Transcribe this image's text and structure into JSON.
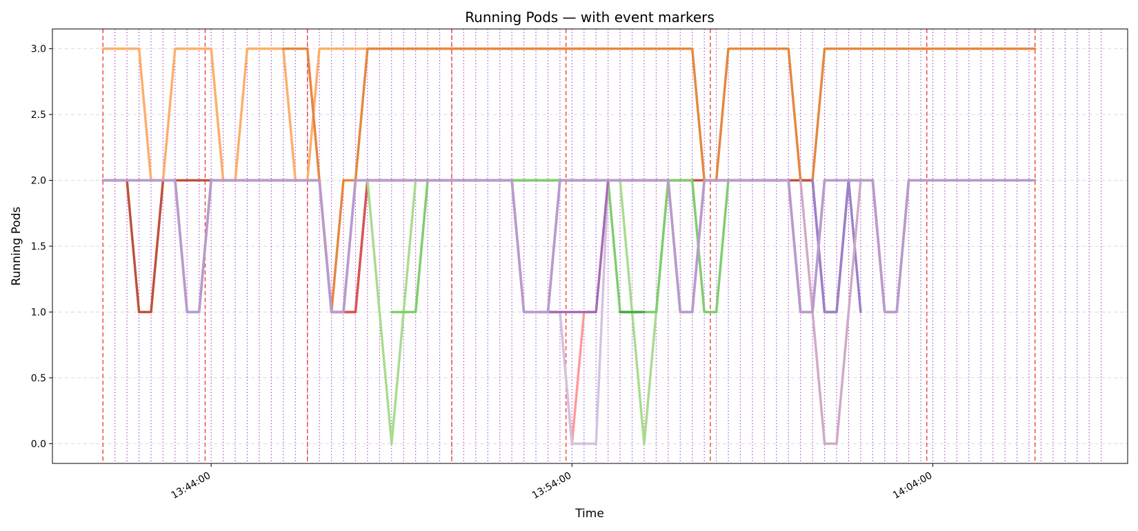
{
  "chart_data": {
    "type": "line",
    "title": "Running Pods —  with event markers",
    "xlabel": "Time",
    "ylabel": "Running Pods",
    "ylim": [
      -0.15,
      3.15
    ],
    "xlim": [
      "13:39:36",
      "14:09:24"
    ],
    "yticks": [
      0.0,
      0.5,
      1.0,
      1.5,
      2.0,
      2.5,
      3.0
    ],
    "ytick_labels": [
      "0.0",
      "0.5",
      "1.0",
      "1.5",
      "2.0",
      "2.5",
      "3.0"
    ],
    "xticks": [
      "13:44:00",
      "13:54:00",
      "14:04:00"
    ],
    "xtick_labels": [
      "13:44:00",
      "13:54:00",
      "14:04:00"
    ],
    "grid": "horizontal, dashed",
    "legend": "none",
    "event_markers": {
      "major": [
        "13:41:00",
        "13:43:50",
        "13:46:40",
        "13:50:40",
        "13:53:50",
        "13:57:50",
        "14:03:50",
        "14:06:50"
      ],
      "minor": [
        "13:41:20",
        "13:41:40",
        "13:42:00",
        "13:42:20",
        "13:42:40",
        "13:43:00",
        "13:43:20",
        "13:43:40",
        "13:44:00",
        "13:44:20",
        "13:44:40",
        "13:45:00",
        "13:45:20",
        "13:45:40",
        "13:46:00",
        "13:46:20",
        "13:46:40",
        "13:47:00",
        "13:47:20",
        "13:47:40",
        "13:48:00",
        "13:48:20",
        "13:48:40",
        "13:49:00",
        "13:49:20",
        "13:49:40",
        "13:50:00",
        "13:50:20",
        "13:50:40",
        "13:51:00",
        "13:51:20",
        "13:51:40",
        "13:52:00",
        "13:52:20",
        "13:52:40",
        "13:53:00",
        "13:53:20",
        "13:53:40",
        "13:54:00",
        "13:54:20",
        "13:54:40",
        "13:55:00",
        "13:55:20",
        "13:55:40",
        "13:56:00",
        "13:56:20",
        "13:56:40",
        "13:57:00",
        "13:57:20",
        "13:57:40",
        "13:58:00",
        "13:58:20",
        "13:58:40",
        "13:59:00",
        "13:59:20",
        "13:59:40",
        "14:00:00",
        "14:00:20",
        "14:00:40",
        "14:01:00",
        "14:01:20",
        "14:01:40",
        "14:02:00",
        "14:02:20",
        "14:02:40",
        "14:03:00",
        "14:03:20",
        "14:03:40",
        "14:04:00",
        "14:04:20",
        "14:04:40",
        "14:05:00",
        "14:05:20",
        "14:05:40",
        "14:06:00",
        "14:06:20",
        "14:06:40",
        "14:07:00",
        "14:07:20",
        "14:07:40",
        "14:08:00",
        "14:08:20",
        "14:08:40"
      ],
      "major_color": "#e8383d",
      "minor_color": "#9b30c8"
    },
    "series": [
      {
        "color": "#fdae6b",
        "width": 3.5,
        "points": [
          [
            "13:41:00",
            3
          ],
          [
            "13:42:00",
            3
          ],
          [
            "13:42:20",
            2
          ],
          [
            "13:42:40",
            2
          ],
          [
            "13:43:00",
            3
          ],
          [
            "13:44:00",
            3
          ],
          [
            "13:44:20",
            2
          ],
          [
            "13:44:40",
            2
          ],
          [
            "13:45:00",
            3
          ],
          [
            "13:46:00",
            3
          ],
          [
            "13:46:20",
            2
          ],
          [
            "13:46:40",
            2
          ],
          [
            "13:47:00",
            3
          ],
          [
            "13:55:00",
            3
          ]
        ]
      },
      {
        "color": "#e6873f",
        "width": 3.5,
        "points": [
          [
            "13:46:00",
            3
          ],
          [
            "13:46:40",
            3
          ],
          [
            "13:47:00",
            2
          ],
          [
            "13:47:20",
            1
          ],
          [
            "13:47:40",
            2
          ],
          [
            "13:48:00",
            2
          ],
          [
            "13:48:20",
            3
          ],
          [
            "13:57:20",
            3
          ],
          [
            "13:57:40",
            2
          ],
          [
            "13:58:00",
            2
          ],
          [
            "13:58:20",
            3
          ],
          [
            "14:00:00",
            3
          ],
          [
            "14:00:20",
            2
          ],
          [
            "14:00:40",
            2
          ],
          [
            "14:01:00",
            3
          ],
          [
            "14:06:50",
            3
          ]
        ]
      },
      {
        "color": "#c0503a",
        "width": 3.5,
        "points": [
          [
            "13:41:00",
            2
          ],
          [
            "13:41:40",
            2
          ],
          [
            "13:42:00",
            1
          ],
          [
            "13:42:20",
            1
          ],
          [
            "13:42:40",
            2
          ],
          [
            "13:43:20",
            2
          ],
          [
            "13:43:40",
            2
          ],
          [
            "13:46:00",
            2
          ],
          [
            "13:47:00",
            2
          ],
          [
            "13:47:20",
            1
          ],
          [
            "13:48:00",
            1
          ],
          [
            "13:48:20",
            2
          ],
          [
            "13:49:00",
            2
          ],
          [
            "14:00:20",
            2
          ],
          [
            "14:00:40",
            2
          ],
          [
            "14:01:00",
            1
          ],
          [
            "14:01:20",
            1
          ],
          [
            "14:01:40",
            2
          ],
          [
            "14:02:00",
            2
          ]
        ]
      },
      {
        "color": "#d95558",
        "width": 3.5,
        "points": [
          [
            "13:47:40",
            1
          ],
          [
            "13:48:00",
            1
          ],
          [
            "13:48:20",
            2
          ],
          [
            "13:48:40",
            2
          ]
        ]
      },
      {
        "color": "#a9dc8e",
        "width": 3.5,
        "points": [
          [
            "13:48:20",
            2
          ],
          [
            "13:48:40",
            1
          ],
          [
            "13:49:00",
            0
          ],
          [
            "13:49:20",
            1
          ],
          [
            "13:49:40",
            2
          ],
          [
            "13:50:00",
            2
          ],
          [
            "13:55:20",
            2
          ],
          [
            "13:55:40",
            1
          ],
          [
            "13:56:00",
            0
          ],
          [
            "13:56:20",
            1
          ],
          [
            "13:56:40",
            2
          ]
        ]
      },
      {
        "color": "#7fcd6e",
        "width": 3.5,
        "points": [
          [
            "13:49:00",
            1
          ],
          [
            "13:49:40",
            1
          ],
          [
            "13:50:00",
            2
          ],
          [
            "13:53:00",
            2
          ],
          [
            "13:54:40",
            2
          ],
          [
            "13:55:00",
            2
          ],
          [
            "13:55:20",
            1
          ],
          [
            "13:56:20",
            1
          ],
          [
            "13:56:40",
            2
          ],
          [
            "13:57:20",
            2
          ],
          [
            "13:57:40",
            1
          ],
          [
            "13:58:00",
            1
          ],
          [
            "13:58:20",
            2
          ]
        ]
      },
      {
        "color": "#4fa64b",
        "width": 3.5,
        "points": [
          [
            "13:55:20",
            1
          ],
          [
            "13:56:00",
            1
          ]
        ]
      },
      {
        "color": "#ff9a9a",
        "width": 3.5,
        "points": [
          [
            "13:53:20",
            1
          ],
          [
            "13:53:40",
            1
          ],
          [
            "13:54:00",
            0
          ],
          [
            "13:54:20",
            1
          ],
          [
            "13:54:40",
            1
          ]
        ]
      },
      {
        "color": "#d4c2df",
        "width": 3.5,
        "points": [
          [
            "13:53:40",
            1
          ],
          [
            "13:54:00",
            0
          ],
          [
            "13:54:20",
            0
          ],
          [
            "13:54:40",
            0
          ],
          [
            "13:55:00",
            2
          ]
        ]
      },
      {
        "color": "#a56bb4",
        "width": 3.5,
        "points": [
          [
            "13:53:20",
            1
          ],
          [
            "13:54:20",
            1
          ],
          [
            "13:54:40",
            1
          ],
          [
            "13:55:00",
            2
          ]
        ]
      },
      {
        "color": "#9b80cc",
        "width": 3.5,
        "points": [
          [
            "14:00:40",
            2
          ],
          [
            "14:01:00",
            1
          ],
          [
            "14:01:20",
            1
          ],
          [
            "14:01:40",
            2
          ],
          [
            "14:02:00",
            1
          ]
        ]
      },
      {
        "color": "#d1a9c7",
        "width": 3.5,
        "points": [
          [
            "14:00:20",
            2
          ],
          [
            "14:00:40",
            1
          ],
          [
            "14:01:00",
            0
          ],
          [
            "14:01:20",
            0
          ],
          [
            "14:01:40",
            1
          ],
          [
            "14:02:00",
            2
          ]
        ]
      },
      {
        "color": "#b99acd",
        "width": 3.8,
        "points": [
          [
            "13:41:00",
            2
          ],
          [
            "13:42:40",
            2
          ],
          [
            "13:43:00",
            2
          ],
          [
            "13:43:20",
            1
          ],
          [
            "13:43:40",
            1
          ],
          [
            "13:44:00",
            2
          ],
          [
            "13:46:40",
            2
          ],
          [
            "13:47:00",
            2
          ],
          [
            "13:47:20",
            1
          ],
          [
            "13:47:40",
            1
          ],
          [
            "13:48:00",
            2
          ],
          [
            "13:52:00",
            2
          ],
          [
            "13:52:20",
            2
          ],
          [
            "13:52:40",
            1
          ],
          [
            "13:53:20",
            1
          ],
          [
            "13:53:40",
            2
          ],
          [
            "13:54:20",
            2
          ],
          [
            "13:55:00",
            2
          ],
          [
            "13:56:40",
            2
          ],
          [
            "13:57:00",
            1
          ],
          [
            "13:57:20",
            1
          ],
          [
            "13:57:40",
            2
          ],
          [
            "14:00:00",
            2
          ],
          [
            "14:00:20",
            1
          ],
          [
            "14:00:40",
            1
          ],
          [
            "14:01:00",
            2
          ],
          [
            "14:02:20",
            2
          ],
          [
            "14:02:40",
            1
          ],
          [
            "14:03:00",
            1
          ],
          [
            "14:03:20",
            2
          ],
          [
            "14:06:50",
            2
          ]
        ]
      }
    ]
  }
}
